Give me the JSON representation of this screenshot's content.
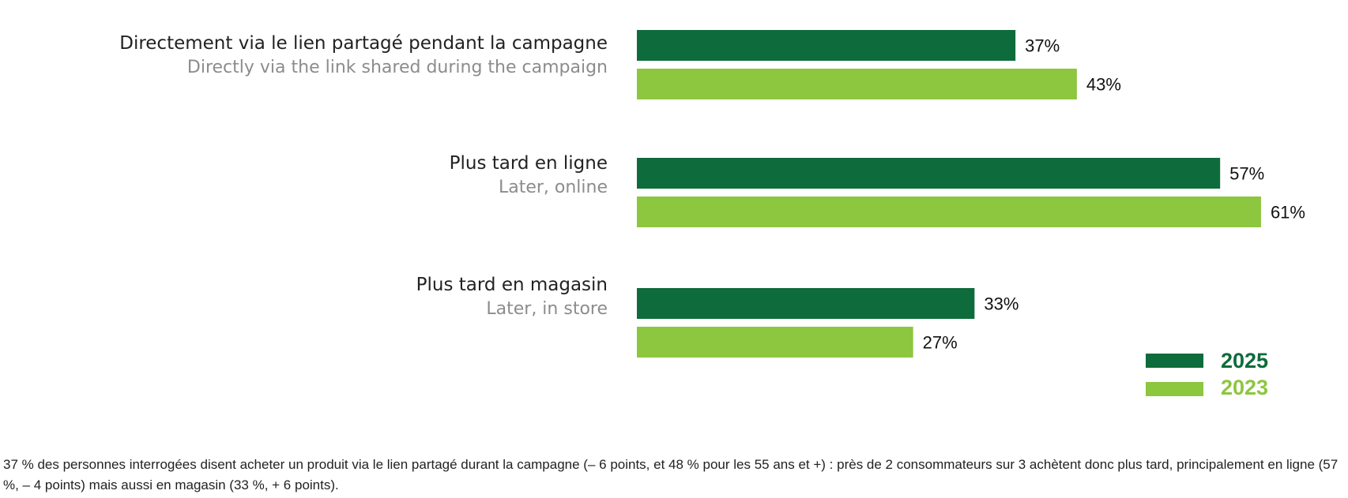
{
  "colors": {
    "series_2025": "#0e6b3b",
    "series_2023": "#8dc63f",
    "category_label": "#222222",
    "category_sublabel": "#8c8c8c",
    "value_label": "#111111"
  },
  "chart_data": {
    "type": "bar",
    "orientation": "horizontal",
    "categories": [
      "Directement via le lien partagé pendant la campagne",
      "Plus tard en ligne",
      "Plus tard en magasin"
    ],
    "category_translations": [
      "Directly via the link shared during the campaign",
      "Later, online",
      "Later, in store"
    ],
    "series": [
      {
        "name": "2025",
        "values": [
          37,
          57,
          33
        ]
      },
      {
        "name": "2023",
        "values": [
          43,
          61,
          27
        ]
      }
    ],
    "value_labels": [
      [
        "37%",
        "57%",
        "33%"
      ],
      [
        "43%",
        "61%",
        "27%"
      ]
    ],
    "xlim": [
      0,
      61
    ],
    "grid": false,
    "legend_position": "bottom-right"
  },
  "caption": "37 % des personnes interrogées disent acheter un produit via le lien partagé durant la campagne (– 6 points, et 48 % pour les 55 ans et +) : près de 2 consommateurs sur 3 achètent donc plus tard, principalement en ligne (57 %, – 4 points) mais aussi en magasin (33 %, + 6 points)."
}
